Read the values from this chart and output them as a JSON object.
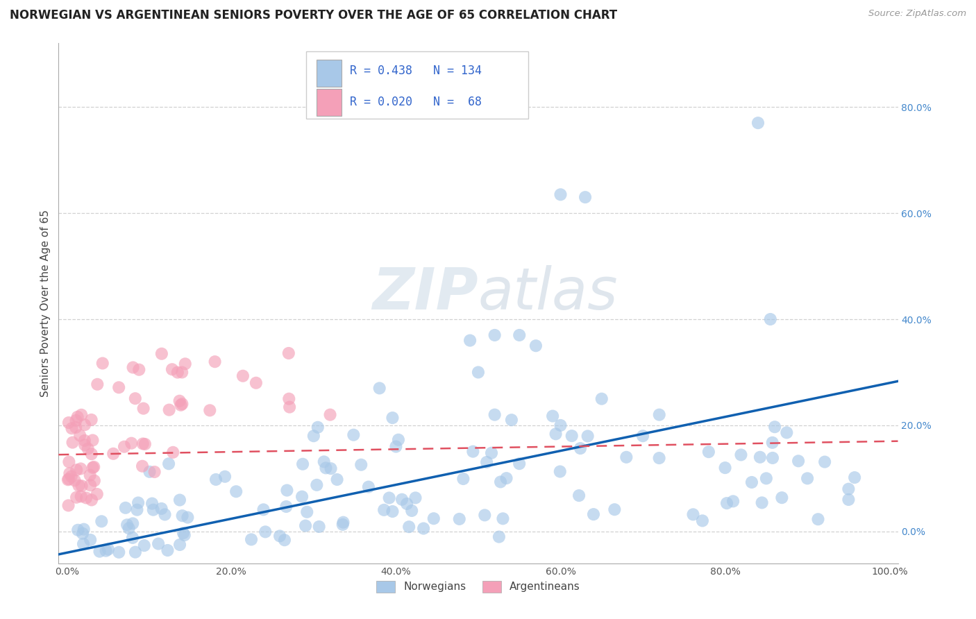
{
  "title": "NORWEGIAN VS ARGENTINEAN SENIORS POVERTY OVER THE AGE OF 65 CORRELATION CHART",
  "source": "Source: ZipAtlas.com",
  "ylabel": "Seniors Poverty Over the Age of 65",
  "xlim": [
    -0.01,
    1.01
  ],
  "ylim": [
    -0.06,
    0.92
  ],
  "x_ticks": [
    0.0,
    0.2,
    0.4,
    0.6,
    0.8,
    1.0
  ],
  "x_tick_labels": [
    "0.0%",
    "20.0%",
    "40.0%",
    "60.0%",
    "80.0%",
    "100.0%"
  ],
  "y_ticks": [
    0.0,
    0.2,
    0.4,
    0.6,
    0.8
  ],
  "y_tick_labels": [
    "0.0%",
    "20.0%",
    "40.0%",
    "60.0%",
    "80.0%"
  ],
  "norwegian_color": "#a8c8e8",
  "argentinean_color": "#f4a0b8",
  "norwegian_line_color": "#1060b0",
  "argentinean_line_color": "#e05060",
  "legend_R_norwegian": "0.438",
  "legend_N_norwegian": "134",
  "legend_R_argentinean": "0.020",
  "legend_N_argentinean": "68",
  "background_color": "#ffffff",
  "grid_color": "#cccccc",
  "title_fontsize": 12,
  "axis_label_fontsize": 11,
  "tick_fontsize": 10,
  "legend_fontsize": 12
}
